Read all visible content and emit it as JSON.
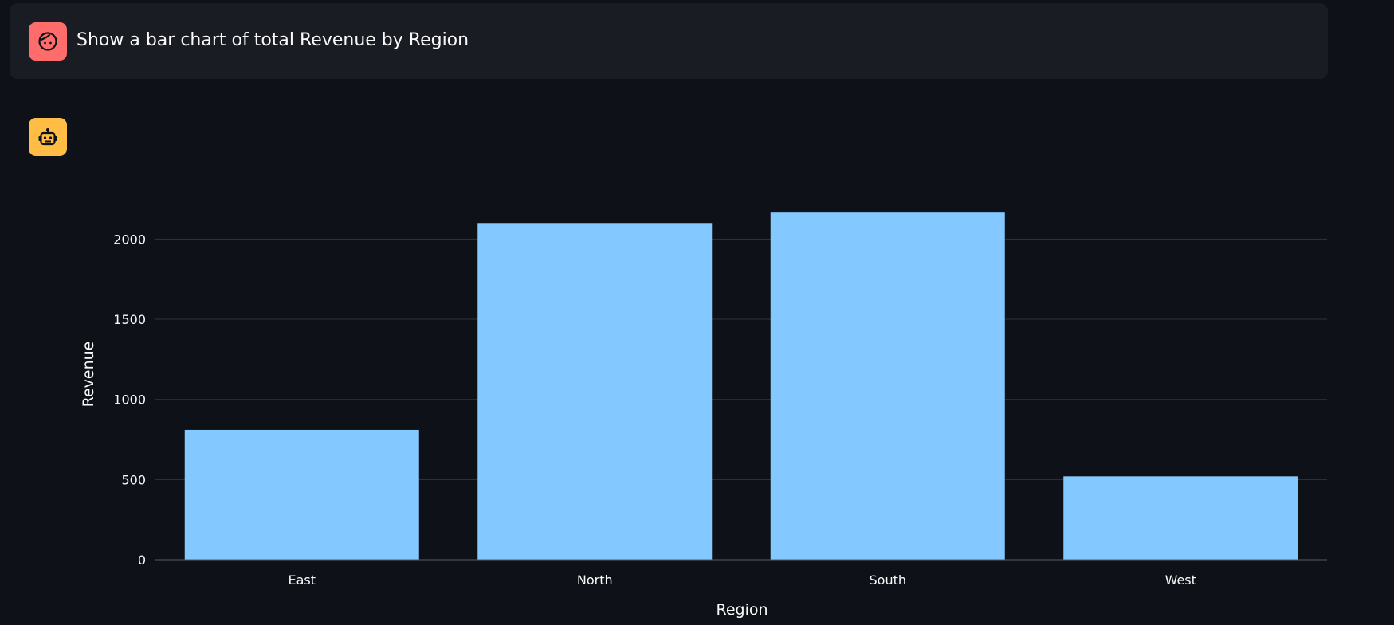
{
  "chat": {
    "user_message": "Show a bar chart of total Revenue by Region",
    "user_avatar_icon": "user-face-icon",
    "assistant_avatar_icon": "robot-icon"
  },
  "colors": {
    "background": "#0e1117",
    "message_bg": "#1a1c24",
    "user_avatar": "#ff6c6c",
    "assistant_avatar": "#ffbd45",
    "bar": "#83c9ff",
    "grid": "#31333f",
    "text": "#fafafa"
  },
  "chart_data": {
    "type": "bar",
    "categories": [
      "East",
      "North",
      "South",
      "West"
    ],
    "values": [
      810,
      2100,
      2170,
      520
    ],
    "xlabel": "Region",
    "ylabel": "Revenue",
    "ylim": [
      0,
      2300
    ],
    "yticks": [
      0,
      500,
      1000,
      1500,
      2000
    ],
    "grid": true
  }
}
